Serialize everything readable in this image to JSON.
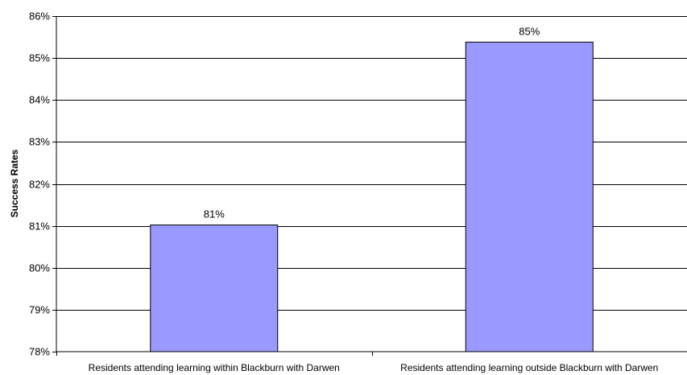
{
  "chart_data": {
    "type": "bar",
    "title": "",
    "xlabel": "",
    "ylabel": "Success Rates",
    "categories": [
      "Residents attending learning within Blackburn with Darwen",
      "Residents attending learning outside Blackburn with Darwen"
    ],
    "values": [
      81.02,
      85.38
    ],
    "data_labels": [
      "81%",
      "85%"
    ],
    "ylim": [
      78,
      86
    ],
    "yticks": [
      78,
      79,
      80,
      81,
      82,
      83,
      84,
      85,
      86
    ],
    "ytick_labels": [
      "78%",
      "79%",
      "80%",
      "81%",
      "82%",
      "83%",
      "84%",
      "85%",
      "86%"
    ],
    "grid": true,
    "legend": "none",
    "bar_color": "#9999ff",
    "bar_edge_color": "#000000"
  }
}
